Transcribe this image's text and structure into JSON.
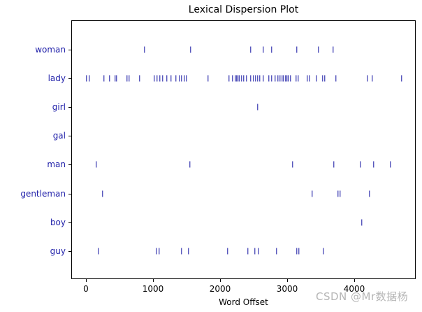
{
  "chart_data": {
    "type": "scatter",
    "title": "Lexical Dispersion Plot",
    "xlabel": "Word Offset",
    "ylabel": "",
    "xlim": [
      -220,
      4980
    ],
    "xticks": [
      0,
      1000,
      2000,
      3000,
      4000
    ],
    "xtick_labels": [
      "0",
      "1000",
      "2000",
      "3000",
      "4000"
    ],
    "marker": "|",
    "marker_color": "#1010a0",
    "label_color": "#2222aa",
    "grid": false,
    "legend": null,
    "categories": [
      "woman",
      "lady",
      "girl",
      "gal",
      "man",
      "gentleman",
      "boy",
      "guy"
    ],
    "series": [
      {
        "name": "woman",
        "values": [
          875,
          1563,
          2458,
          2646,
          2771,
          3146,
          3469,
          3688
        ]
      },
      {
        "name": "lady",
        "values": [
          10,
          52,
          271,
          354,
          438,
          458,
          615,
          646,
          802,
          1021,
          1063,
          1104,
          1146,
          1208,
          1271,
          1344,
          1396,
          1427,
          1469,
          1500,
          1823,
          2135,
          2188,
          2229,
          2250,
          2271,
          2292,
          2323,
          2354,
          2396,
          2458,
          2500,
          2531,
          2563,
          2594,
          2646,
          2729,
          2771,
          2823,
          2865,
          2896,
          2927,
          2948,
          2979,
          3000,
          3021,
          3052,
          3135,
          3167,
          3302,
          3333,
          3438,
          3531,
          3563,
          3729,
          4198,
          4271,
          4708
        ]
      },
      {
        "name": "girl",
        "values": [
          2563
        ]
      },
      {
        "name": "gal",
        "values": []
      },
      {
        "name": "man",
        "values": [
          156,
          1552,
          3083,
          3698,
          4094,
          4292,
          4542
        ]
      },
      {
        "name": "gentleman",
        "values": [
          250,
          3375,
          3760,
          3792,
          4229
        ]
      },
      {
        "name": "boy",
        "values": [
          4115
        ]
      },
      {
        "name": "guy",
        "values": [
          188,
          1052,
          1094,
          1427,
          1531,
          2115,
          2417,
          2521,
          2573,
          2844,
          3146,
          3177,
          3542
        ]
      }
    ]
  },
  "watermark": "CSDN @Mr数据杨"
}
